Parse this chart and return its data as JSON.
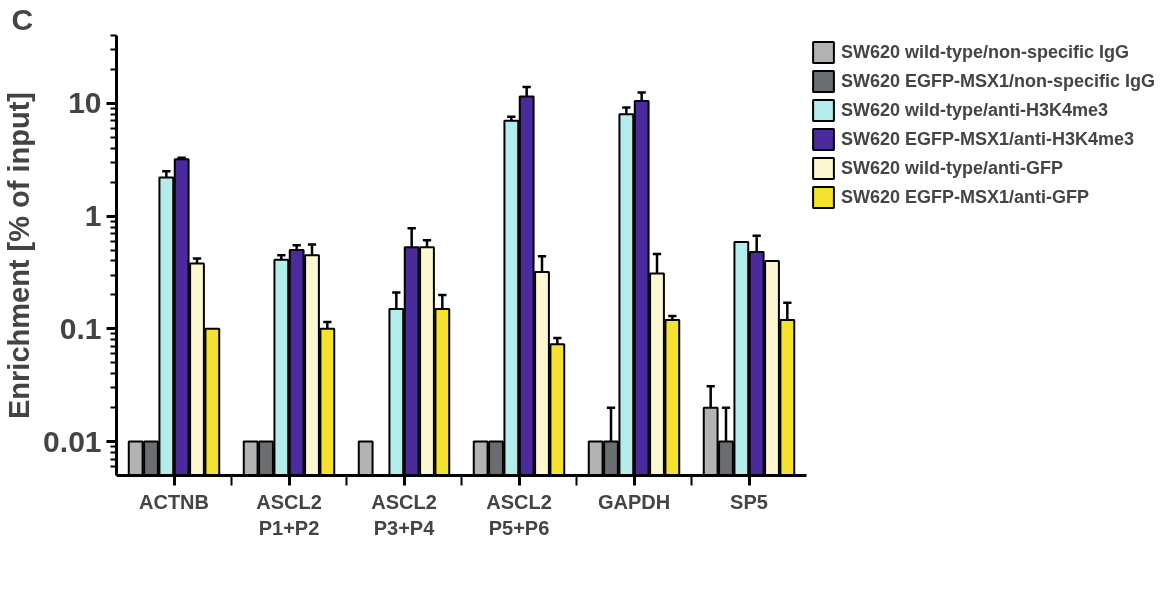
{
  "chart_data": {
    "type": "bar",
    "ylabel": "Enrichment [% of input]",
    "annotations": [
      "C"
    ],
    "categories": [
      "ACTNB",
      "ASCL2\nP1+P2",
      "ASCL2\nP3+P4",
      "ASCL2\nP5+P6",
      "GAPDH",
      "SP5"
    ],
    "series": [
      {
        "name": "SW620 wild-type/non-specific IgG",
        "color": "#b3b3b3",
        "values": [
          0.01,
          0.01,
          0.01,
          0.01,
          0.01,
          0.02
        ],
        "errors": [
          null,
          null,
          null,
          null,
          null,
          [
            0.02,
            0.031
          ]
        ]
      },
      {
        "name": "SW620 EGFP-MSX1/non-specific IgG",
        "color": "#6a6e70",
        "values": [
          0.01,
          0.01,
          null,
          0.01,
          0.01,
          0.01
        ],
        "errors": [
          null,
          null,
          null,
          null,
          [
            0.01,
            0.02
          ],
          [
            0.01,
            0.02
          ]
        ]
      },
      {
        "name": "SW620 wild-type/anti-H3K4me3",
        "color": "#b3ecea",
        "values": [
          2.2,
          0.41,
          0.15,
          7,
          8,
          0.59
        ],
        "errors": [
          [
            2.2,
            2.5
          ],
          [
            0.41,
            0.45
          ],
          [
            0.15,
            0.21
          ],
          [
            7,
            7.6
          ],
          [
            8,
            9.2
          ],
          null
        ]
      },
      {
        "name": "SW620 EGFP-MSX1/anti-H3K4me3",
        "color": "#4b2a9e",
        "values": [
          3.2,
          0.5,
          0.53,
          11.5,
          10.5,
          0.48
        ],
        "errors": [
          [
            3.2,
            3.3
          ],
          [
            0.5,
            0.55
          ],
          [
            0.53,
            0.78
          ],
          [
            11.5,
            14
          ],
          [
            10.5,
            12.5
          ],
          [
            0.48,
            0.67
          ]
        ]
      },
      {
        "name": "SW620 wild-type/anti-GFP",
        "color": "#fdf8d2",
        "values": [
          0.38,
          0.45,
          0.53,
          0.32,
          0.31,
          0.4
        ],
        "errors": [
          [
            0.38,
            0.42
          ],
          [
            0.45,
            0.56
          ],
          [
            0.53,
            0.61
          ],
          [
            0.32,
            0.44
          ],
          [
            0.31,
            0.46
          ],
          null
        ]
      },
      {
        "name": "SW620 EGFP-MSX1/anti-GFP",
        "color": "#f5e12e",
        "values": [
          0.1,
          0.1,
          0.15,
          0.073,
          0.12,
          0.12
        ],
        "errors": [
          null,
          [
            0.1,
            0.115
          ],
          [
            0.15,
            0.2
          ],
          [
            0.073,
            0.083
          ],
          [
            0.12,
            0.13
          ],
          [
            0.12,
            0.17
          ]
        ]
      }
    ],
    "log": true,
    "ylim": [
      0.005,
      40
    ],
    "yticks": [
      {
        "value": 0.006,
        "label": null
      },
      {
        "value": 0.007,
        "label": null
      },
      {
        "value": 0.008,
        "label": null
      },
      {
        "value": 0.009,
        "label": null
      },
      0.01,
      {
        "value": 0.02,
        "label": null
      },
      {
        "value": 0.03,
        "label": null
      },
      {
        "value": 0.04,
        "label": null
      },
      {
        "value": 0.05,
        "label": null
      },
      {
        "value": 0.06,
        "label": null
      },
      {
        "value": 0.07,
        "label": null
      },
      {
        "value": 0.08,
        "label": null
      },
      {
        "value": 0.09,
        "label": null
      },
      0.1,
      {
        "value": 0.2,
        "label": null
      },
      {
        "value": 0.3,
        "label": null
      },
      {
        "value": 0.4,
        "label": null
      },
      {
        "value": 0.5,
        "label": null
      },
      {
        "value": 0.6,
        "label": null
      },
      {
        "value": 0.7,
        "label": null
      },
      {
        "value": 0.8,
        "label": null
      },
      {
        "value": 0.9,
        "label": null
      },
      1,
      {
        "value": 2,
        "label": null
      },
      {
        "value": 3,
        "label": null
      },
      {
        "value": 4,
        "label": null
      },
      {
        "value": 5,
        "label": null
      },
      {
        "value": 6,
        "label": null
      },
      {
        "value": 7,
        "label": null
      },
      {
        "value": 8,
        "label": null
      },
      {
        "value": 9,
        "label": null
      },
      10,
      {
        "value": 20,
        "label": null
      },
      {
        "value": 30,
        "label": null
      },
      {
        "value": 40,
        "label": null
      }
    ],
    "grid": false,
    "legend": "top right"
  }
}
